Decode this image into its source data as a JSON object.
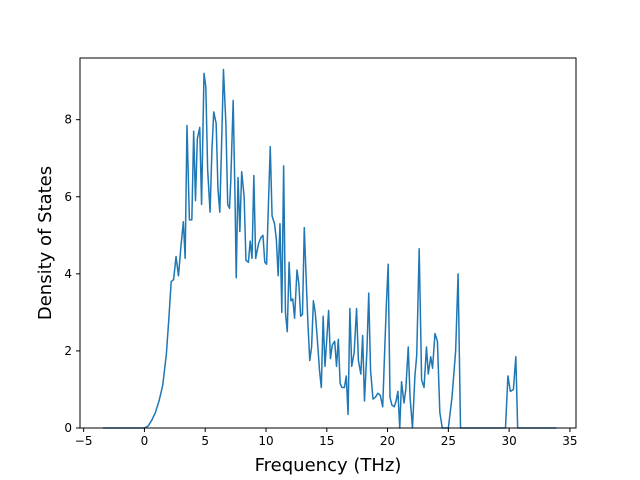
{
  "chart_data": {
    "type": "line",
    "title": "",
    "xlabel": "Frequency (THz)",
    "ylabel": "Density of States",
    "xlim": [
      -5.3,
      35.5
    ],
    "ylim": [
      0,
      9.6
    ],
    "xticks": [
      -5,
      0,
      5,
      10,
      15,
      20,
      25,
      30,
      35
    ],
    "yticks": [
      0,
      2,
      4,
      6,
      8
    ],
    "grid": false,
    "legend": null,
    "series": [
      {
        "color": "#1f77b4",
        "points": [
          [
            -3.4,
            0
          ],
          [
            -2.0,
            0
          ],
          [
            -1.0,
            0
          ],
          [
            0.0,
            0
          ],
          [
            0.3,
            0.05
          ],
          [
            0.6,
            0.2
          ],
          [
            0.9,
            0.4
          ],
          [
            1.2,
            0.7
          ],
          [
            1.5,
            1.1
          ],
          [
            1.8,
            1.9
          ],
          [
            2.0,
            2.8
          ],
          [
            2.2,
            3.8
          ],
          [
            2.4,
            3.85
          ],
          [
            2.6,
            4.45
          ],
          [
            2.8,
            3.95
          ],
          [
            3.0,
            4.7
          ],
          [
            3.2,
            5.35
          ],
          [
            3.35,
            4.4
          ],
          [
            3.5,
            7.85
          ],
          [
            3.7,
            5.4
          ],
          [
            3.9,
            5.4
          ],
          [
            4.05,
            7.7
          ],
          [
            4.2,
            5.9
          ],
          [
            4.35,
            7.5
          ],
          [
            4.55,
            7.8
          ],
          [
            4.7,
            5.8
          ],
          [
            4.9,
            9.2
          ],
          [
            5.05,
            8.85
          ],
          [
            5.2,
            6.7
          ],
          [
            5.4,
            5.6
          ],
          [
            5.55,
            7.2
          ],
          [
            5.7,
            8.2
          ],
          [
            5.9,
            7.9
          ],
          [
            6.05,
            6.2
          ],
          [
            6.2,
            5.6
          ],
          [
            6.35,
            7.4
          ],
          [
            6.5,
            9.3
          ],
          [
            6.7,
            7.9
          ],
          [
            6.85,
            5.8
          ],
          [
            7.0,
            5.7
          ],
          [
            7.1,
            6.4
          ],
          [
            7.3,
            8.5
          ],
          [
            7.45,
            6.0
          ],
          [
            7.55,
            3.9
          ],
          [
            7.7,
            6.5
          ],
          [
            7.85,
            5.1
          ],
          [
            8.0,
            6.65
          ],
          [
            8.2,
            6.0
          ],
          [
            8.35,
            4.35
          ],
          [
            8.55,
            4.3
          ],
          [
            8.7,
            4.85
          ],
          [
            8.85,
            4.4
          ],
          [
            9.0,
            6.55
          ],
          [
            9.15,
            4.4
          ],
          [
            9.4,
            4.8
          ],
          [
            9.6,
            4.95
          ],
          [
            9.75,
            5.0
          ],
          [
            9.9,
            4.3
          ],
          [
            10.05,
            4.25
          ],
          [
            10.2,
            5.8
          ],
          [
            10.35,
            7.3
          ],
          [
            10.5,
            5.5
          ],
          [
            10.7,
            5.3
          ],
          [
            10.85,
            4.9
          ],
          [
            11.0,
            3.95
          ],
          [
            11.15,
            5.3
          ],
          [
            11.3,
            3.0
          ],
          [
            11.45,
            6.8
          ],
          [
            11.6,
            3.0
          ],
          [
            11.75,
            2.5
          ],
          [
            11.9,
            4.3
          ],
          [
            12.05,
            3.3
          ],
          [
            12.2,
            3.35
          ],
          [
            12.35,
            2.85
          ],
          [
            12.55,
            4.1
          ],
          [
            12.7,
            3.75
          ],
          [
            12.85,
            2.9
          ],
          [
            13.0,
            2.95
          ],
          [
            13.15,
            5.2
          ],
          [
            13.3,
            3.9
          ],
          [
            13.45,
            2.7
          ],
          [
            13.6,
            1.75
          ],
          [
            13.75,
            2.1
          ],
          [
            13.9,
            3.3
          ],
          [
            14.05,
            3.0
          ],
          [
            14.2,
            2.4
          ],
          [
            14.4,
            1.5
          ],
          [
            14.55,
            1.05
          ],
          [
            14.7,
            2.9
          ],
          [
            14.85,
            1.6
          ],
          [
            15.0,
            2.3
          ],
          [
            15.15,
            3.05
          ],
          [
            15.3,
            1.8
          ],
          [
            15.45,
            2.15
          ],
          [
            15.65,
            2.25
          ],
          [
            15.8,
            1.6
          ],
          [
            15.95,
            2.3
          ],
          [
            16.1,
            1.15
          ],
          [
            16.25,
            1.05
          ],
          [
            16.45,
            1.05
          ],
          [
            16.6,
            1.35
          ],
          [
            16.75,
            0.35
          ],
          [
            16.9,
            3.1
          ],
          [
            17.05,
            1.6
          ],
          [
            17.25,
            1.95
          ],
          [
            17.45,
            3.1
          ],
          [
            17.6,
            1.75
          ],
          [
            17.8,
            1.4
          ],
          [
            17.95,
            2.4
          ],
          [
            18.1,
            0.7
          ],
          [
            18.3,
            2.0
          ],
          [
            18.45,
            3.5
          ],
          [
            18.6,
            1.5
          ],
          [
            18.8,
            0.75
          ],
          [
            19.0,
            0.8
          ],
          [
            19.2,
            0.9
          ],
          [
            19.4,
            0.85
          ],
          [
            19.6,
            0.55
          ],
          [
            19.75,
            1.9
          ],
          [
            19.9,
            3.2
          ],
          [
            20.05,
            4.25
          ],
          [
            20.2,
            0.8
          ],
          [
            20.35,
            0.6
          ],
          [
            20.55,
            0.55
          ],
          [
            20.7,
            0.7
          ],
          [
            20.85,
            0.95
          ],
          [
            21.0,
            0.0
          ],
          [
            21.15,
            1.2
          ],
          [
            21.35,
            0.65
          ],
          [
            21.5,
            1.0
          ],
          [
            21.7,
            2.1
          ],
          [
            21.85,
            0.8
          ],
          [
            22.05,
            0.0
          ],
          [
            22.25,
            1.35
          ],
          [
            22.4,
            1.9
          ],
          [
            22.6,
            4.65
          ],
          [
            22.8,
            1.25
          ],
          [
            23.0,
            1.05
          ],
          [
            23.2,
            2.1
          ],
          [
            23.35,
            1.4
          ],
          [
            23.55,
            1.85
          ],
          [
            23.7,
            1.55
          ],
          [
            23.9,
            2.45
          ],
          [
            24.1,
            2.25
          ],
          [
            24.3,
            0.4
          ],
          [
            24.5,
            0.0
          ],
          [
            25.0,
            0.0
          ],
          [
            25.3,
            0.8
          ],
          [
            25.6,
            2.0
          ],
          [
            25.8,
            4.0
          ],
          [
            26.0,
            0.0
          ],
          [
            27.5,
            0.0
          ],
          [
            29.0,
            0.0
          ],
          [
            29.7,
            0.0
          ],
          [
            29.9,
            1.35
          ],
          [
            30.1,
            0.95
          ],
          [
            30.35,
            1.0
          ],
          [
            30.55,
            1.85
          ],
          [
            30.7,
            0.0
          ],
          [
            32.0,
            0.0
          ],
          [
            33.9,
            0.0
          ]
        ]
      }
    ]
  }
}
